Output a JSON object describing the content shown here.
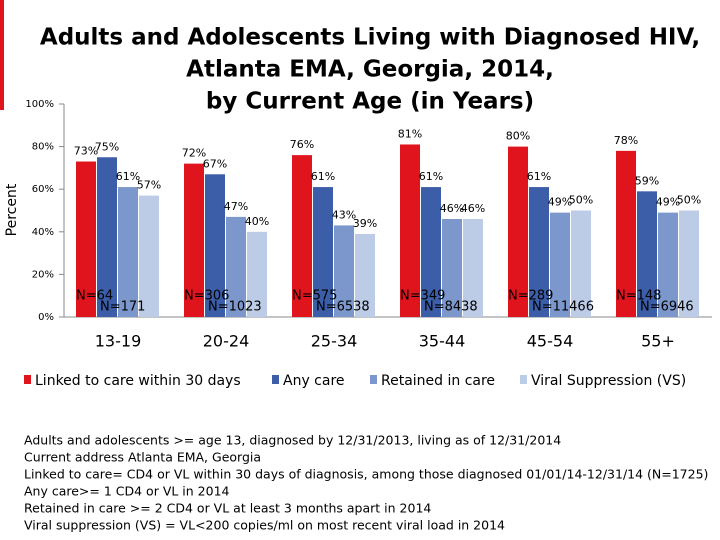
{
  "chart_data": {
    "type": "bar",
    "title": [
      "Adults and Adolescents Living with Diagnosed HIV,",
      "Atlanta EMA, Georgia, 2014,",
      "by Current Age (in Years)"
    ],
    "y_label": "Percent",
    "categories": [
      "13-19",
      "20-24",
      "25-34",
      "35-44",
      "45-54",
      "55+"
    ],
    "series": [
      {
        "name": "Linked to care within 30 days",
        "color": "#e0141c",
        "values": [
          73,
          72,
          76,
          81,
          80,
          78
        ],
        "value_labels": [
          "73%",
          "72%",
          "76%",
          "81%",
          "80%",
          "78%"
        ]
      },
      {
        "name": "Any care",
        "color": "#3c5ea8",
        "values": [
          75,
          67,
          61,
          61,
          61,
          59
        ],
        "value_labels": [
          "75%",
          "67%",
          "61%",
          "61%",
          "61%",
          "59%"
        ]
      },
      {
        "name": "Retained in care",
        "color": "#7c97cb",
        "values": [
          61,
          47,
          43,
          46,
          49,
          49
        ],
        "value_labels": [
          "61%",
          "47%",
          "43%",
          "46%",
          "49%",
          "49%"
        ]
      },
      {
        "name": "Viral Suppression (VS)",
        "color": "#bccbe6",
        "values": [
          57,
          40,
          39,
          46,
          50,
          50
        ],
        "value_labels": [
          "57%",
          "40%",
          "39%",
          "46%",
          "50%",
          "50%"
        ]
      }
    ],
    "group_labels": [
      [
        "N=64",
        "N=171"
      ],
      [
        "N=306",
        "N=1023"
      ],
      [
        "N=575",
        "N=6538"
      ],
      [
        "N=349",
        "N=8438"
      ],
      [
        "N=289",
        "N=11466"
      ],
      [
        "N=148",
        "N=6946"
      ]
    ],
    "ylim": [
      0,
      100
    ],
    "yticks": [
      {
        "value": 0,
        "label": "0%"
      },
      {
        "value": 20,
        "label": "20%"
      },
      {
        "value": 40,
        "label": "40%"
      },
      {
        "value": 60,
        "label": "60%"
      },
      {
        "value": 80,
        "label": "80%"
      },
      {
        "value": 100,
        "label": "100%"
      }
    ],
    "grid": false,
    "notes": [
      "Adults and adolescents >= age 13, diagnosed by 12/31/2013, living as of 12/31/2014",
      "Current address Atlanta EMA, Georgia",
      "Linked to care= CD4 or VL within 30 days of diagnosis, among those diagnosed 01/01/14-12/31/14 (N=1725)",
      "Any care>= 1 CD4 or VL in 2014",
      "Retained in care >= 2 CD4 or VL at least 3 months apart in 2014",
      "Viral suppression (VS) = VL<200 copies/ml on most recent viral load in 2014"
    ]
  }
}
